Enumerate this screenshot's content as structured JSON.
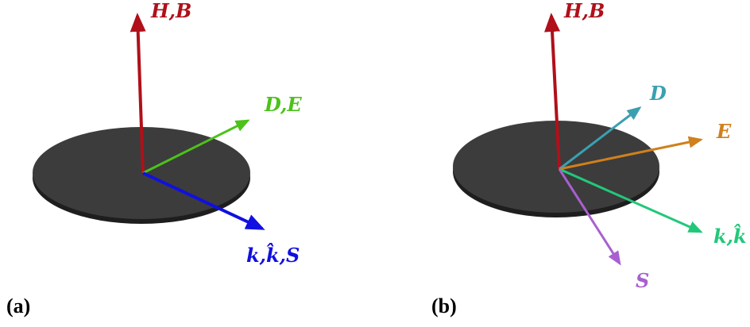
{
  "panels": [
    {
      "label": "(a)",
      "vectors": [
        {
          "label": "H,B"
        },
        {
          "label": "D,E"
        },
        {
          "label": "k,k̂,S"
        }
      ]
    },
    {
      "label": "(b)",
      "vectors": [
        {
          "label": "H,B"
        },
        {
          "label": "D"
        },
        {
          "label": "E"
        },
        {
          "label": "k,k̂"
        },
        {
          "label": "S"
        }
      ]
    }
  ]
}
